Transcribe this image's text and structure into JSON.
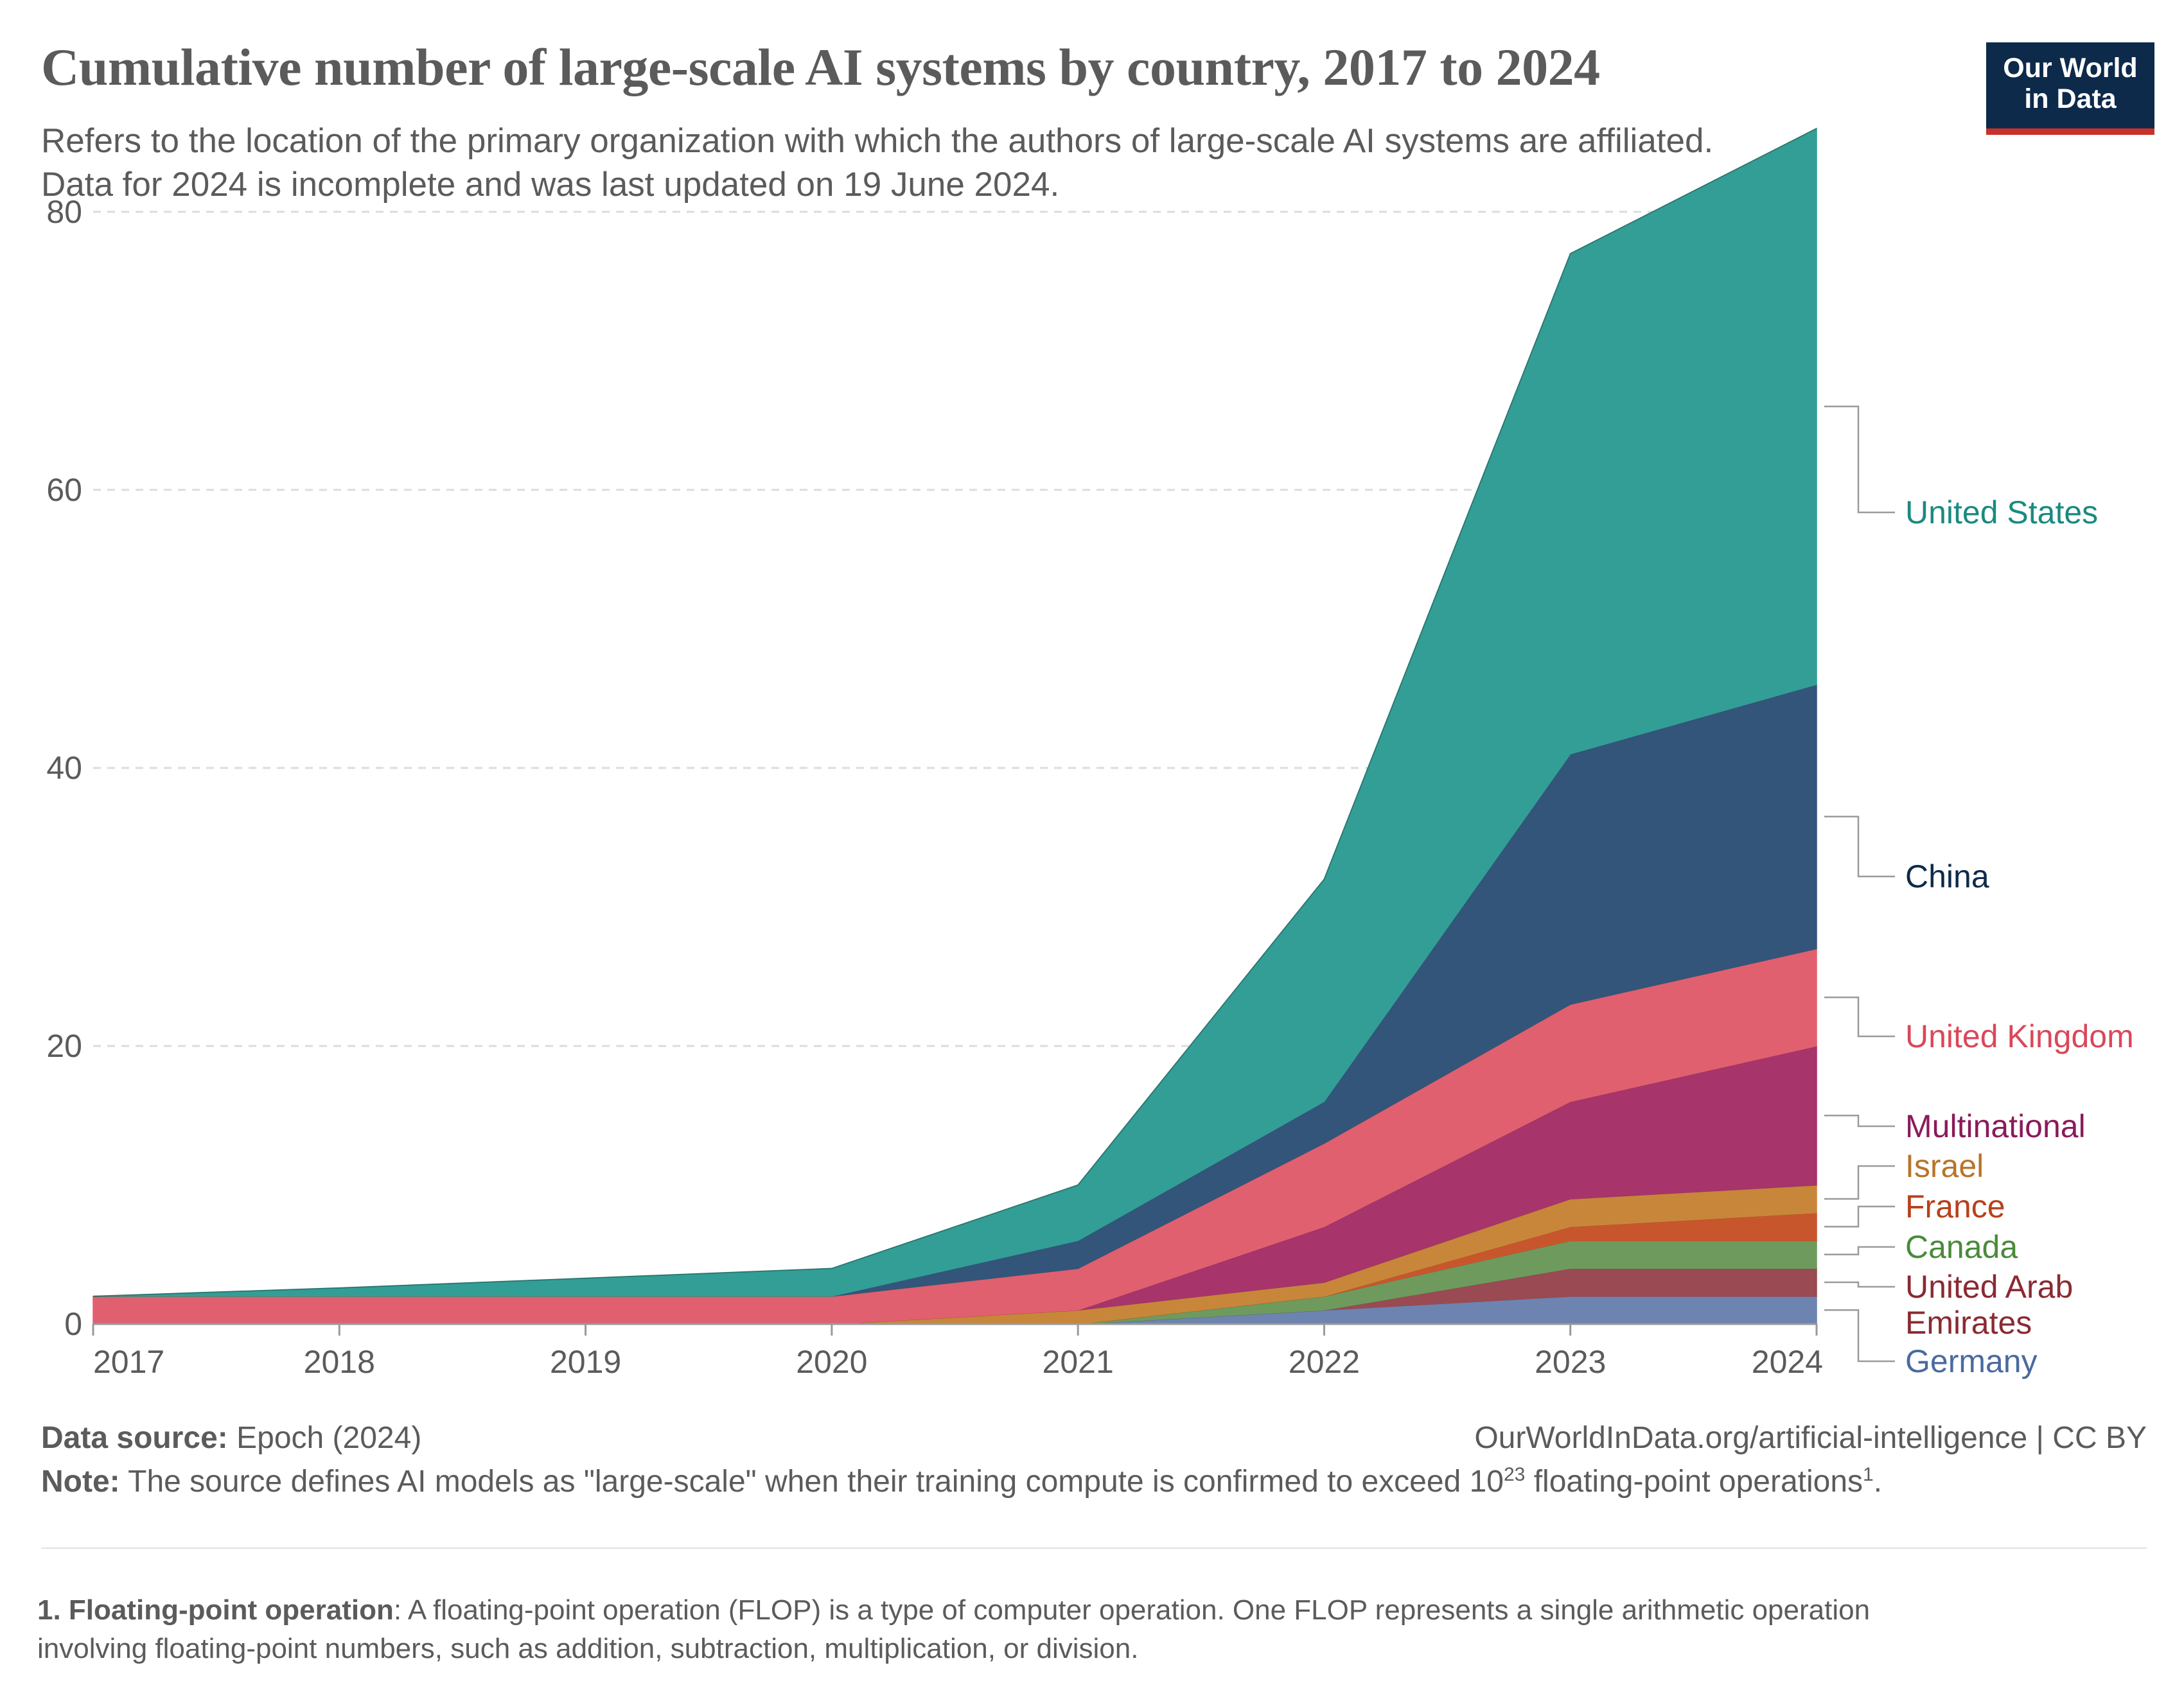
{
  "header": {
    "title": "Cumulative number of large-scale AI systems by country, 2017 to 2024",
    "subtitle_line1": "Refers to the location of the primary organization with which the authors of large-scale AI systems are affiliated.",
    "subtitle_line2": "Data for 2024 is incomplete and was last updated on 19 June 2024."
  },
  "logo": {
    "line1": "Our World",
    "line2": "in Data"
  },
  "footer": {
    "source_label": "Data source:",
    "source_text": "Epoch (2024)",
    "url": "OurWorldInData.org/artificial-intelligence | CC BY",
    "note_label": "Note:",
    "note_text": "The source defines AI models as \"large-scale\" when their training compute is confirmed to exceed 10",
    "note_exponent": "23",
    "note_tail": " floating-point operations",
    "note_ref": "1",
    "note_end": ".",
    "footnote_label": "1. Floating-point operation",
    "footnote_line1": ": A floating-point operation (FLOP) is a type of computer operation. One FLOP represents a single arithmetic operation",
    "footnote_line2": "involving floating-point numbers, such as addition, subtraction, multiplication, or division."
  },
  "chart_data": {
    "type": "area",
    "stacked": true,
    "x": [
      2017,
      2018,
      2019,
      2020,
      2021,
      2022,
      2023,
      2024
    ],
    "x_ticks": [
      "2017",
      "2018",
      "2019",
      "2020",
      "2021",
      "2022",
      "2023",
      "2024"
    ],
    "y_ticks": [
      "0",
      "20",
      "40",
      "60",
      "80"
    ],
    "ylim": [
      0,
      86
    ],
    "grid": true,
    "legend": "right, labels at end of each area",
    "series": [
      {
        "name": "Germany",
        "color": "#6d84b0",
        "values": [
          0,
          0,
          0,
          0,
          0,
          1,
          2,
          2
        ]
      },
      {
        "name": "United Arab Emirates",
        "color": "#9a4a52",
        "values": [
          0,
          0,
          0,
          0,
          0,
          0,
          2,
          2
        ]
      },
      {
        "name": "Canada",
        "color": "#6e9a5e",
        "values": [
          0,
          0,
          0,
          0,
          0,
          1,
          2,
          2
        ]
      },
      {
        "name": "France",
        "color": "#c8562c",
        "values": [
          0,
          0,
          0,
          0,
          0,
          0,
          1,
          2
        ]
      },
      {
        "name": "Israel",
        "color": "#c8863a",
        "values": [
          0,
          0,
          0,
          0,
          1,
          1,
          2,
          2
        ]
      },
      {
        "name": "Multinational",
        "color": "#a7346a",
        "values": [
          0,
          0,
          0,
          0,
          0,
          4,
          7,
          10
        ]
      },
      {
        "name": "United Kingdom",
        "color": "#e0606f",
        "values": [
          2,
          2,
          2,
          2,
          3,
          6,
          7,
          7
        ]
      },
      {
        "name": "China",
        "color": "#33557a",
        "values": [
          0,
          0,
          0,
          0,
          2,
          3,
          18,
          19
        ]
      },
      {
        "name": "United States",
        "color": "#339e96",
        "values": [
          0,
          0.6,
          1.3,
          2,
          4,
          16,
          36,
          40
        ]
      }
    ],
    "labels": [
      {
        "series": "United States",
        "lines": [
          "United States"
        ],
        "color": "#1a8a80"
      },
      {
        "series": "China",
        "lines": [
          "China"
        ],
        "color": "#0d2a4a"
      },
      {
        "series": "United Kingdom",
        "lines": [
          "United Kingdom"
        ],
        "color": "#d9485a"
      },
      {
        "series": "Multinational",
        "lines": [
          "Multinational"
        ],
        "color": "#8b1a5a"
      },
      {
        "series": "Israel",
        "lines": [
          "Israel"
        ],
        "color": "#b8742a"
      },
      {
        "series": "France",
        "lines": [
          "France"
        ],
        "color": "#b8401a"
      },
      {
        "series": "Canada",
        "lines": [
          "Canada"
        ],
        "color": "#4a8a3a"
      },
      {
        "series": "United Arab Emirates",
        "lines": [
          "United Arab",
          "Emirates"
        ],
        "color": "#8a2a32"
      },
      {
        "series": "Germany",
        "lines": [
          "Germany"
        ],
        "color": "#4a6aa0"
      }
    ]
  }
}
